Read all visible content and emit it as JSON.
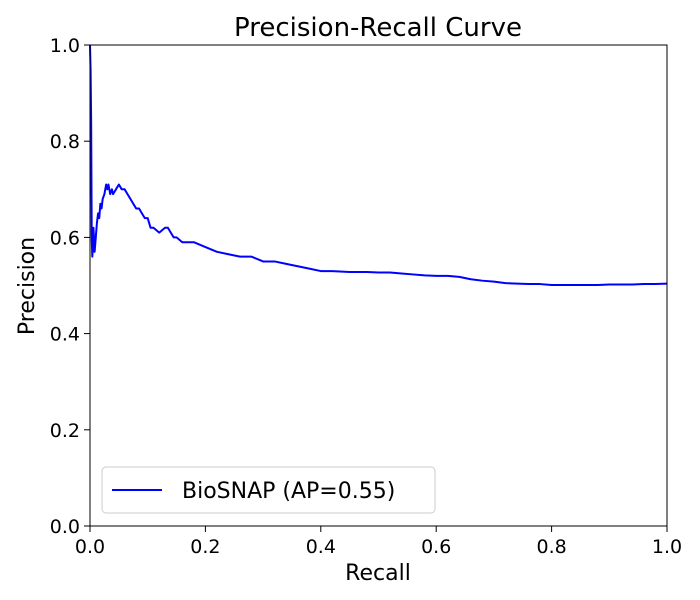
{
  "chart_data": {
    "type": "line",
    "title": "Precision-Recall Curve",
    "xlabel": "Recall",
    "ylabel": "Precision",
    "xlim": [
      0.0,
      1.0
    ],
    "ylim": [
      0.0,
      1.0
    ],
    "x_ticks": [
      "0.0",
      "0.2",
      "0.4",
      "0.6",
      "0.8",
      "1.0"
    ],
    "y_ticks": [
      "0.0",
      "0.2",
      "0.4",
      "0.6",
      "0.8",
      "1.0"
    ],
    "grid": false,
    "legend": {
      "placement": "lower-left"
    },
    "series": [
      {
        "name": "BioSNAP (AP=0.55)",
        "color": "#0000ff",
        "points": [
          [
            0.0,
            1.0
          ],
          [
            0.001,
            0.95
          ],
          [
            0.002,
            0.84
          ],
          [
            0.003,
            0.6
          ],
          [
            0.004,
            0.56
          ],
          [
            0.005,
            0.58
          ],
          [
            0.006,
            0.62
          ],
          [
            0.008,
            0.57
          ],
          [
            0.01,
            0.6
          ],
          [
            0.012,
            0.63
          ],
          [
            0.014,
            0.65
          ],
          [
            0.016,
            0.64
          ],
          [
            0.018,
            0.67
          ],
          [
            0.02,
            0.66
          ],
          [
            0.022,
            0.68
          ],
          [
            0.025,
            0.69
          ],
          [
            0.028,
            0.71
          ],
          [
            0.03,
            0.7
          ],
          [
            0.032,
            0.71
          ],
          [
            0.035,
            0.69
          ],
          [
            0.038,
            0.7
          ],
          [
            0.04,
            0.69
          ],
          [
            0.045,
            0.7
          ],
          [
            0.05,
            0.71
          ],
          [
            0.055,
            0.7
          ],
          [
            0.06,
            0.7
          ],
          [
            0.065,
            0.69
          ],
          [
            0.07,
            0.68
          ],
          [
            0.075,
            0.67
          ],
          [
            0.08,
            0.66
          ],
          [
            0.085,
            0.66
          ],
          [
            0.09,
            0.65
          ],
          [
            0.095,
            0.64
          ],
          [
            0.1,
            0.64
          ],
          [
            0.105,
            0.62
          ],
          [
            0.11,
            0.62
          ],
          [
            0.12,
            0.61
          ],
          [
            0.13,
            0.62
          ],
          [
            0.135,
            0.62
          ],
          [
            0.14,
            0.61
          ],
          [
            0.145,
            0.6
          ],
          [
            0.15,
            0.6
          ],
          [
            0.16,
            0.59
          ],
          [
            0.17,
            0.59
          ],
          [
            0.18,
            0.59
          ],
          [
            0.2,
            0.58
          ],
          [
            0.22,
            0.57
          ],
          [
            0.24,
            0.565
          ],
          [
            0.26,
            0.56
          ],
          [
            0.28,
            0.56
          ],
          [
            0.3,
            0.55
          ],
          [
            0.32,
            0.55
          ],
          [
            0.34,
            0.545
          ],
          [
            0.36,
            0.54
          ],
          [
            0.38,
            0.535
          ],
          [
            0.4,
            0.53
          ],
          [
            0.42,
            0.53
          ],
          [
            0.45,
            0.528
          ],
          [
            0.48,
            0.528
          ],
          [
            0.5,
            0.527
          ],
          [
            0.52,
            0.527
          ],
          [
            0.54,
            0.525
          ],
          [
            0.56,
            0.523
          ],
          [
            0.58,
            0.521
          ],
          [
            0.6,
            0.52
          ],
          [
            0.62,
            0.52
          ],
          [
            0.64,
            0.518
          ],
          [
            0.66,
            0.513
          ],
          [
            0.68,
            0.51
          ],
          [
            0.7,
            0.508
          ],
          [
            0.72,
            0.505
          ],
          [
            0.74,
            0.504
          ],
          [
            0.76,
            0.503
          ],
          [
            0.78,
            0.503
          ],
          [
            0.8,
            0.501
          ],
          [
            0.82,
            0.501
          ],
          [
            0.84,
            0.501
          ],
          [
            0.86,
            0.501
          ],
          [
            0.88,
            0.501
          ],
          [
            0.9,
            0.502
          ],
          [
            0.92,
            0.502
          ],
          [
            0.94,
            0.502
          ],
          [
            0.96,
            0.503
          ],
          [
            0.98,
            0.503
          ],
          [
            1.0,
            0.504
          ]
        ]
      }
    ]
  }
}
